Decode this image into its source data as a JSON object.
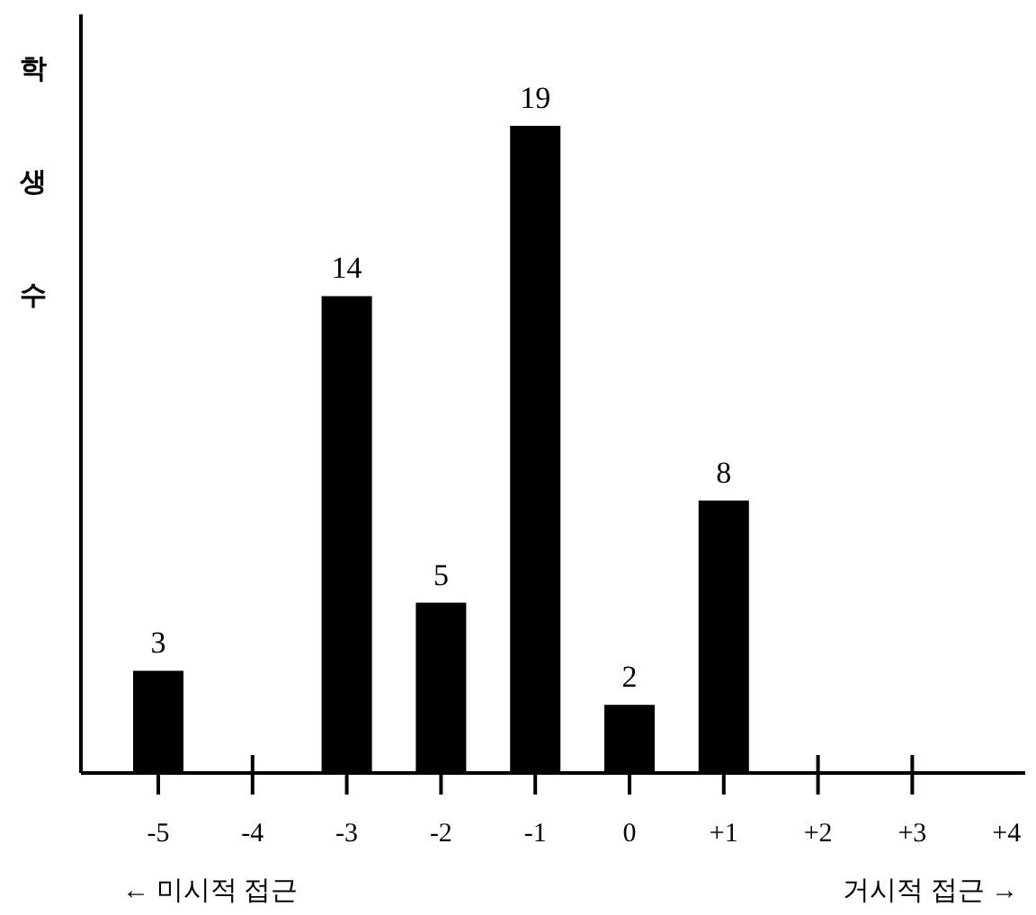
{
  "chart_data": {
    "type": "bar",
    "ylabel": "학생수",
    "categories": [
      "-5",
      "-4",
      "-3",
      "-2",
      "-1",
      "0",
      "+1",
      "+2",
      "+3",
      "+4"
    ],
    "values": [
      3,
      null,
      14,
      5,
      19,
      2,
      8,
      null,
      null,
      null
    ],
    "color": "#000000",
    "data_labels": true,
    "annotations": [
      "← 미시적 접근",
      "거시적 접근 →"
    ]
  }
}
